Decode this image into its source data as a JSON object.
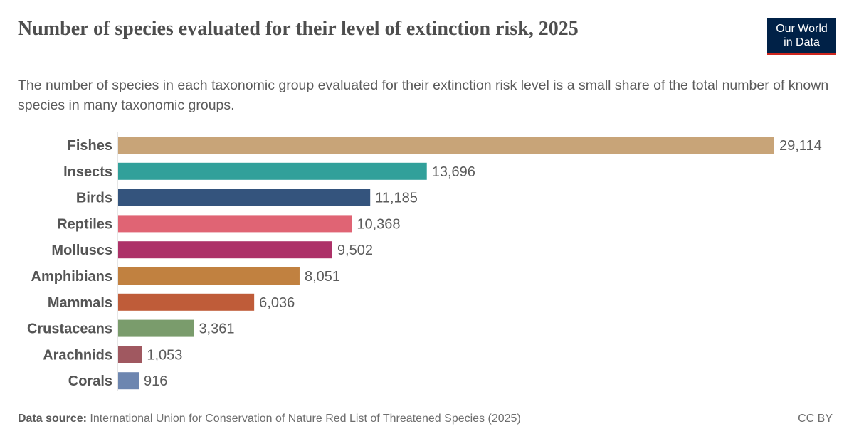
{
  "header": {
    "title": "Number of species evaluated for their level of extinction risk, 2025",
    "subtitle": "The number of species in each taxonomic group evaluated for their extinction risk level is a small share of the total number of known species in many taxonomic groups.",
    "logo_text": "Our World in Data"
  },
  "chart_data": {
    "type": "bar",
    "orientation": "horizontal",
    "categories": [
      "Fishes",
      "Insects",
      "Birds",
      "Reptiles",
      "Molluscs",
      "Amphibians",
      "Mammals",
      "Crustaceans",
      "Arachnids",
      "Corals"
    ],
    "values": [
      29114,
      13696,
      11185,
      10368,
      9502,
      8051,
      6036,
      3361,
      1053,
      916
    ],
    "value_labels": [
      "29,114",
      "13,696",
      "11,185",
      "10,368",
      "9,502",
      "8,051",
      "6,036",
      "3,361",
      "1,053",
      "916"
    ],
    "colors": [
      "#c8a478",
      "#31a09a",
      "#34547d",
      "#e06474",
      "#ad3168",
      "#c18140",
      "#bf5c39",
      "#7a9c6c",
      "#a05860",
      "#6d86b0"
    ],
    "xlim": [
      0,
      29114
    ],
    "grid": false
  },
  "footer": {
    "source_label": "Data source:",
    "source_text": "International Union for Conservation of Nature Red List of Threatened Species (2025)",
    "license": "CC BY"
  }
}
